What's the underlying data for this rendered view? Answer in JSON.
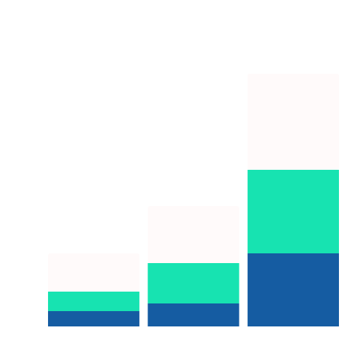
{
  "chart_data": {
    "type": "bar",
    "stacked": true,
    "categories": [
      "",
      "",
      ""
    ],
    "series": [
      {
        "values": [
          22,
          33,
          105
        ],
        "color": "#155ca2"
      },
      {
        "values": [
          28,
          58,
          120
        ],
        "color": "#17e3b1"
      },
      {
        "values": [
          55,
          82,
          138
        ],
        "color": "#fffafa"
      }
    ],
    "ylim": [
      0,
      365
    ],
    "grid": false,
    "legend": "none"
  }
}
